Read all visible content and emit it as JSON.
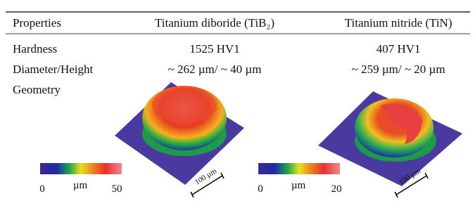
{
  "table": {
    "header": [
      "Properties",
      "Titanium diboride (TiB₂)",
      "Titanium nitride (TiN)"
    ],
    "rows": [
      [
        "Hardness",
        "1525 HV1",
        "407 HV1"
      ],
      [
        "Diameter/Height",
        "~ 262 µm/ ~ 40 µm",
        "~ 259 µm/ ~ 20 µm"
      ],
      [
        "Geometry"
      ]
    ]
  },
  "figures": [
    {
      "colorbar": {
        "min": "0",
        "unit": "µm",
        "max": "50"
      },
      "scale_bar": "100 µm"
    },
    {
      "colorbar": {
        "min": "0",
        "unit": "µm",
        "max": "20"
      },
      "scale_bar": "100 µm"
    }
  ]
}
